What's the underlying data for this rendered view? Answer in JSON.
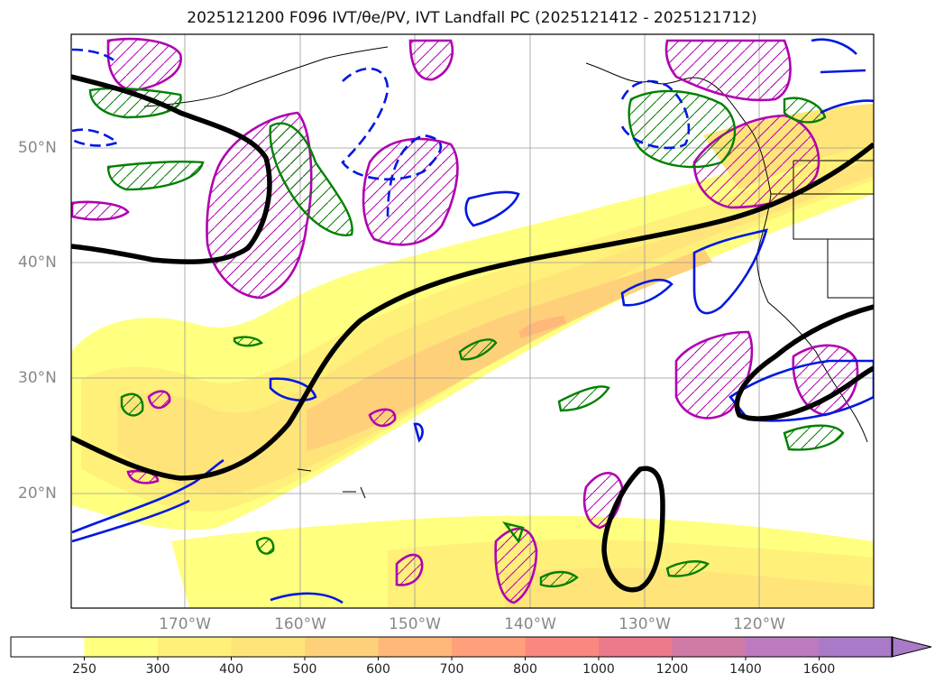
{
  "figure": {
    "title": "2025121200 F096 IVT/θe/PV, IVT Landfall PC (2025121412 - 2025121712)"
  },
  "map": {
    "lat_labels": [
      "50°N",
      "40°N",
      "30°N",
      "20°N"
    ],
    "lon_labels": [
      "170°W",
      "160°W",
      "150°W",
      "140°W",
      "130°W",
      "120°W"
    ]
  },
  "colorbar": {
    "ticks": [
      "250",
      "300",
      "400",
      "500",
      "600",
      "700",
      "800",
      "1000",
      "1200",
      "1400",
      "1600"
    ],
    "colors": [
      "#ffffff",
      "#ffff80",
      "#fff079",
      "#ffe47a",
      "#ffd07a",
      "#ffb87a",
      "#ffa07a",
      "#fb8880",
      "#ec7a8a",
      "#d07aa6",
      "#bc7ac0",
      "#a97ac8"
    ],
    "extend": "max"
  }
}
